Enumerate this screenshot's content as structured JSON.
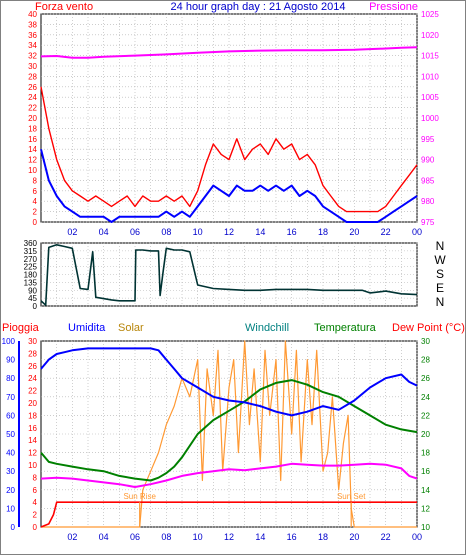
{
  "header": {
    "title": "24 hour graph day : 21 Agosto 2014",
    "left_label": "Forza vento",
    "right_label": "Pressione"
  },
  "wind_dir_labels": [
    "N",
    "W",
    "S",
    "E",
    "N"
  ],
  "bottom_legend": [
    "Pioggia",
    "Umidita",
    "Solar",
    "Windchill",
    "Temperatura",
    "Dew Point (°C)"
  ],
  "annotations": {
    "sunrise": "Sun Rise",
    "sunset": "Sun Set"
  },
  "colors": {
    "wind_gust": "#ff0000",
    "wind_avg": "#0000ff",
    "pressure": "#ff00ff",
    "wind_dir": "#003333",
    "humidity": "#0000ff",
    "solar": "#ff9933",
    "temperature": "#008000",
    "dew_point": "#ff00ff",
    "rain": "#ff0000",
    "rain_axis": "#ff0000",
    "humidity_axis": "#0000ff",
    "solar_label": "#b8860b",
    "windchill_label": "#008080"
  },
  "chart_data": [
    {
      "type": "line",
      "title": "24 hour graph day : 21 Agosto 2014",
      "x_ticks": [
        "02",
        "04",
        "06",
        "08",
        "10",
        "12",
        "14",
        "16",
        "18",
        "20",
        "22",
        "00"
      ],
      "left_axis": {
        "label": "Forza vento",
        "ticks": [
          "0",
          "2",
          "4",
          "6",
          "8",
          "10",
          "12",
          "14",
          "16",
          "18",
          "20",
          "22",
          "24",
          "26",
          "28",
          "30",
          "32",
          "34",
          "36",
          "38",
          "40"
        ],
        "range": [
          0,
          40
        ]
      },
      "right_axis": {
        "label": "Pressione",
        "ticks": [
          "975",
          "980",
          "985",
          "990",
          "995",
          "1000",
          "1005",
          "1010",
          "1015",
          "1020",
          "1025"
        ],
        "range": [
          975,
          1025
        ]
      },
      "grid": true,
      "series": [
        {
          "name": "Forza vento",
          "role": "gust",
          "axis": "left",
          "hours": [
            0,
            0.5,
            1,
            1.5,
            2,
            2.5,
            3,
            3.5,
            4,
            4.5,
            5,
            5.5,
            6,
            6.5,
            7,
            7.5,
            8,
            8.5,
            9,
            9.5,
            10,
            10.5,
            11,
            11.5,
            12,
            12.5,
            13,
            13.5,
            14,
            14.5,
            15,
            15.5,
            16,
            16.5,
            17,
            17.5,
            18,
            18.5,
            19,
            19.5,
            20,
            20.5,
            21,
            21.5,
            22,
            22.5,
            23,
            23.5,
            24
          ],
          "values": [
            26,
            18,
            12,
            8,
            6,
            5,
            4,
            5,
            4,
            3,
            4,
            5,
            3,
            5,
            4,
            4,
            5,
            4,
            5,
            3,
            6,
            11,
            15,
            13,
            12,
            16,
            12,
            14,
            15,
            13,
            16,
            14,
            15,
            12,
            13,
            11,
            7,
            5,
            3,
            2,
            2,
            2,
            2,
            2,
            3,
            5,
            7,
            9,
            11
          ]
        },
        {
          "name": "Forza vento",
          "role": "average",
          "axis": "left",
          "hours": [
            0,
            0.5,
            1,
            1.5,
            2,
            2.5,
            3,
            3.5,
            4,
            4.5,
            5,
            5.5,
            6,
            6.5,
            7,
            7.5,
            8,
            8.5,
            9,
            9.5,
            10,
            10.5,
            11,
            11.5,
            12,
            12.5,
            13,
            13.5,
            14,
            14.5,
            15,
            15.5,
            16,
            16.5,
            17,
            17.5,
            18,
            18.5,
            19,
            19.5,
            20,
            20.5,
            21,
            21.5,
            22,
            22.5,
            23,
            23.5,
            24
          ],
          "values": [
            14,
            8,
            5,
            3,
            2,
            1,
            1,
            1,
            1,
            0,
            1,
            1,
            1,
            1,
            1,
            1,
            2,
            1,
            2,
            1,
            3,
            5,
            7,
            6,
            5,
            7,
            6,
            6,
            7,
            6,
            7,
            6,
            7,
            5,
            6,
            5,
            3,
            2,
            1,
            0,
            0,
            0,
            0,
            0,
            1,
            2,
            3,
            4,
            5
          ]
        },
        {
          "name": "Pressione",
          "axis": "right",
          "hours": [
            0,
            1,
            2,
            3,
            4,
            6,
            8,
            10,
            12,
            14,
            16,
            18,
            20,
            22,
            23,
            24
          ],
          "values": [
            1014.8,
            1014.9,
            1014.5,
            1014.5,
            1014.7,
            1015.0,
            1015.3,
            1015.7,
            1016.0,
            1016.2,
            1016.3,
            1016.3,
            1016.4,
            1016.7,
            1016.9,
            1017.0
          ]
        }
      ]
    },
    {
      "type": "line",
      "x_ticks": [
        "02",
        "04",
        "06",
        "08",
        "10",
        "12",
        "14",
        "16",
        "18",
        "20",
        "22",
        "00"
      ],
      "left_axis": {
        "ticks": [
          "0",
          "45",
          "90",
          "135",
          "180",
          "225",
          "270",
          "315",
          "360"
        ],
        "range": [
          0,
          360
        ]
      },
      "right_labels": [
        "N",
        "W",
        "S",
        "E",
        "N"
      ],
      "grid": true,
      "series": [
        {
          "axis": "left",
          "hours": [
            0,
            0.3,
            0.5,
            1,
            1.5,
            2,
            2.5,
            3,
            3.3,
            3.5,
            3.8,
            4.5,
            5,
            6,
            6.05,
            6.5,
            7,
            7.5,
            7.6,
            7.8,
            8,
            8.5,
            9,
            9.5,
            10,
            11,
            12,
            13,
            14,
            15,
            16,
            17,
            18,
            19,
            20,
            20.5,
            21,
            22,
            23,
            24
          ],
          "values": [
            30,
            5,
            335,
            350,
            340,
            330,
            100,
            95,
            310,
            50,
            45,
            35,
            30,
            30,
            320,
            320,
            315,
            315,
            60,
            200,
            330,
            320,
            320,
            310,
            120,
            100,
            95,
            90,
            90,
            95,
            95,
            95,
            90,
            90,
            90,
            90,
            75,
            85,
            70,
            65
          ]
        }
      ]
    },
    {
      "type": "line",
      "x_ticks": [
        "02",
        "04",
        "06",
        "08",
        "10",
        "12",
        "14",
        "16",
        "18",
        "20",
        "22",
        "00"
      ],
      "left_axis_rain": {
        "label": "Pioggia",
        "ticks": [
          "0",
          "2",
          "4",
          "6",
          "8",
          "10",
          "12",
          "14",
          "16",
          "18",
          "20",
          "22",
          "24",
          "26",
          "28",
          "30"
        ],
        "range": [
          0,
          30
        ]
      },
      "left_axis_humidity": {
        "label": "Umidita",
        "ticks": [
          "0",
          "10",
          "20",
          "30",
          "40",
          "50",
          "60",
          "70",
          "80",
          "90",
          "100"
        ],
        "range": [
          0,
          100
        ]
      },
      "right_axis": {
        "label": "Dew Point (°C)",
        "ticks": [
          "10",
          "12",
          "14",
          "16",
          "18",
          "20",
          "22",
          "24",
          "26",
          "28",
          "30"
        ],
        "range": [
          10,
          30
        ]
      },
      "legend": [
        "Pioggia",
        "Umidita",
        "Solar",
        "Windchill",
        "Temperatura",
        "Dew Point (°C)"
      ],
      "grid": true,
      "series": [
        {
          "name": "Umidita",
          "axis": "humidity",
          "hours": [
            0,
            0.5,
            1,
            1.5,
            2,
            3,
            4,
            5,
            6,
            7,
            7.5,
            8,
            8.5,
            9,
            10,
            11,
            12,
            13,
            14,
            15,
            16,
            17,
            18,
            19,
            20,
            21,
            22,
            23,
            23.5,
            24
          ],
          "values": [
            85,
            90,
            93,
            94,
            95,
            96,
            96,
            96,
            96,
            96,
            95,
            90,
            85,
            80,
            75,
            70,
            68,
            67,
            65,
            62,
            60,
            62,
            65,
            63,
            68,
            75,
            80,
            82,
            78,
            76
          ]
        },
        {
          "name": "Temperatura",
          "axis": "right",
          "hours": [
            0,
            0.5,
            1,
            2,
            3,
            4,
            5,
            6,
            7,
            7.5,
            8,
            8.5,
            9,
            10,
            11,
            12,
            13,
            14,
            15,
            16,
            17,
            18,
            19,
            20,
            21,
            22,
            23,
            24
          ],
          "values": [
            18,
            17,
            16.8,
            16.5,
            16.2,
            16,
            15.5,
            15.2,
            15,
            15.3,
            15.8,
            16.5,
            17.5,
            20,
            21.5,
            22.5,
            23.5,
            24.8,
            25.5,
            25.8,
            25.3,
            24.5,
            24,
            23,
            22,
            21,
            20.5,
            20.2
          ]
        },
        {
          "name": "Dew Point (°C)",
          "axis": "right",
          "hours": [
            0,
            1,
            2,
            3,
            4,
            5,
            6,
            7,
            8,
            9,
            10,
            11,
            12,
            13,
            14,
            15,
            16,
            17,
            18,
            19,
            20,
            21,
            22,
            23,
            23.5,
            24
          ],
          "values": [
            15.2,
            15.3,
            15.2,
            15,
            14.8,
            14.6,
            14.3,
            14.6,
            15,
            15.5,
            15.8,
            16,
            16.2,
            16.1,
            16.3,
            16.5,
            16.8,
            16.7,
            16.6,
            16.6,
            16.7,
            16.8,
            16.7,
            16.3,
            15.5,
            15.2
          ]
        },
        {
          "name": "Solar",
          "axis": "right",
          "hours": [
            0,
            6.3,
            6.5,
            7,
            7.5,
            8,
            8.5,
            9,
            9.5,
            10,
            10.3,
            10.6,
            11,
            11.3,
            11.6,
            12,
            12.3,
            12.6,
            13,
            13.3,
            13.6,
            14,
            14.3,
            14.6,
            15,
            15.3,
            15.6,
            16,
            16.3,
            16.6,
            17,
            17.3,
            17.6,
            18,
            18.3,
            18.6,
            19,
            19.3,
            19.6,
            19.8,
            20,
            24
          ],
          "values": [
            10,
            10,
            14,
            16,
            18,
            21,
            23,
            26,
            24,
            28,
            15,
            27,
            22,
            29,
            16,
            25,
            28,
            18,
            30,
            21,
            27,
            17,
            29,
            22,
            28,
            15,
            30,
            20,
            29,
            17,
            28,
            21,
            29,
            16,
            18,
            24,
            14,
            19,
            22,
            12,
            10,
            10
          ]
        },
        {
          "name": "Pioggia",
          "axis": "rain",
          "hours": [
            0,
            0.5,
            0.8,
            1,
            1.5,
            24
          ],
          "values": [
            0,
            0.5,
            2,
            4,
            4,
            4
          ]
        }
      ]
    }
  ]
}
